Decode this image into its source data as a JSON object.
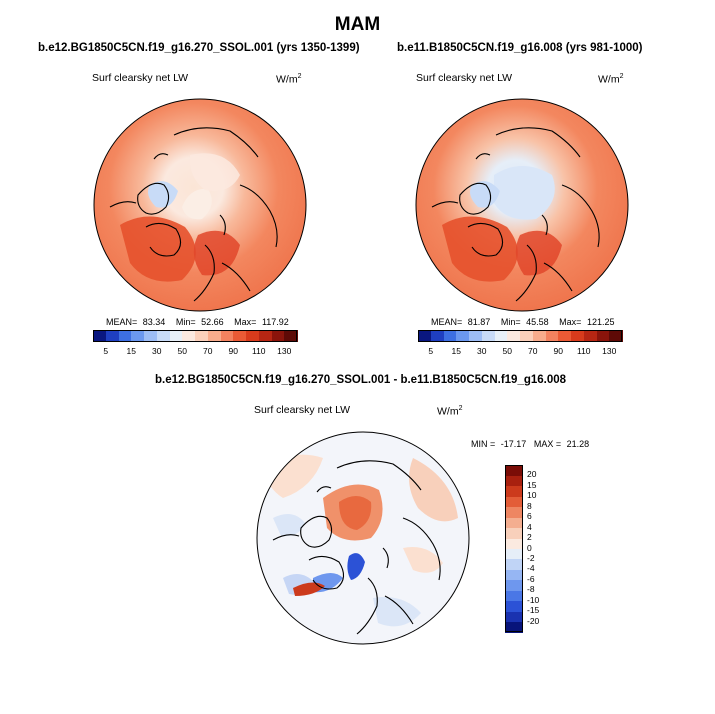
{
  "figure": {
    "season": "MAM",
    "units_base": "W/m",
    "units_exp": "2"
  },
  "chart_data": [
    {
      "type": "heatmap",
      "projection": "north-polar-stereographic",
      "title": "b.e12.BG1850C5CN.f19_g16.270_SSOL.001 (yrs 1350-1399)",
      "variable": "Surf clearsky net LW",
      "units": "W/m2",
      "stats": {
        "mean_label": "MEAN=",
        "mean": "83.34",
        "min_label": "Min=",
        "min": "52.66",
        "max_label": "Max=",
        "max": "117.92"
      },
      "colorbar": {
        "orientation": "horizontal",
        "levels": [
          "5",
          "10",
          "15",
          "20",
          "30",
          "40",
          "50",
          "60",
          "70",
          "80",
          "90",
          "100",
          "110",
          "120",
          "130"
        ],
        "tick_labels": [
          "5",
          "15",
          "30",
          "50",
          "70",
          "90",
          "110",
          "130"
        ],
        "colors": [
          "#0a1780",
          "#1f3fc1",
          "#3d6fe2",
          "#6b98ef",
          "#9dbdf5",
          "#c8dbf7",
          "#e8f0f7",
          "#fbe9df",
          "#fbd0ba",
          "#f8ac8c",
          "#f3825f",
          "#ea5a35",
          "#d83b1c",
          "#b72613",
          "#8a140b",
          "#5e0a06"
        ]
      }
    },
    {
      "type": "heatmap",
      "projection": "north-polar-stereographic",
      "title": "b.e11.B1850C5CN.f19_g16.008 (yrs 981-1000)",
      "variable": "Surf clearsky net LW",
      "units": "W/m2",
      "stats": {
        "mean_label": "MEAN=",
        "mean": "81.87",
        "min_label": "Min=",
        "min": "45.58",
        "max_label": "Max=",
        "max": "121.25"
      },
      "colorbar": {
        "orientation": "horizontal",
        "levels": [
          "5",
          "10",
          "15",
          "20",
          "30",
          "40",
          "50",
          "60",
          "70",
          "80",
          "90",
          "100",
          "110",
          "120",
          "130"
        ],
        "tick_labels": [
          "5",
          "15",
          "30",
          "50",
          "70",
          "90",
          "110",
          "130"
        ],
        "colors": [
          "#0a1780",
          "#1f3fc1",
          "#3d6fe2",
          "#6b98ef",
          "#9dbdf5",
          "#c8dbf7",
          "#e8f0f7",
          "#fbe9df",
          "#fbd0ba",
          "#f8ac8c",
          "#f3825f",
          "#ea5a35",
          "#d83b1c",
          "#b72613",
          "#8a140b",
          "#5e0a06"
        ]
      }
    },
    {
      "type": "heatmap",
      "projection": "north-polar-stereographic",
      "title": "b.e12.BG1850C5CN.f19_g16.270_SSOL.001 - b.e11.B1850C5CN.f19_g16.008",
      "variable": "Surf clearsky net LW",
      "units": "W/m2",
      "stats": {
        "min_label": "MIN =",
        "min": "-17.17",
        "max_label": "MAX =",
        "max": "21.28"
      },
      "colorbar": {
        "orientation": "vertical",
        "levels": [
          "-20",
          "-15",
          "-10",
          "-8",
          "-6",
          "-4",
          "-2",
          "0",
          "2",
          "4",
          "6",
          "8",
          "10",
          "15",
          "20"
        ],
        "tick_labels": [
          "-20",
          "-15",
          "-10",
          "-8",
          "-6",
          "-4",
          "-2",
          "0",
          "2",
          "4",
          "6",
          "8",
          "10",
          "15",
          "20"
        ],
        "colors": [
          "#08147a",
          "#1a32b0",
          "#2c52d6",
          "#4a77e6",
          "#6e97ee",
          "#96b6f3",
          "#c0d4f6",
          "#e6eef8",
          "#fbeae0",
          "#f8d0bb",
          "#f4ae90",
          "#ee8662",
          "#e35d38",
          "#cc3a1c",
          "#a8200f",
          "#7a0d07"
        ]
      }
    }
  ]
}
